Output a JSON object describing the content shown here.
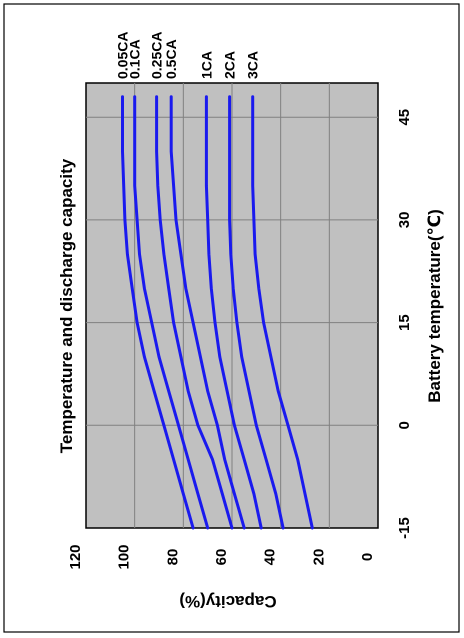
{
  "chart_data": {
    "type": "line",
    "title": "Temperature and discharge capacity",
    "xlabel": "Battery temperature(℃)",
    "ylabel": "Capacity(%)",
    "xlim": [
      -15,
      50
    ],
    "ylim": [
      0,
      120
    ],
    "x_ticks": [
      "-15",
      "0",
      "15",
      "30",
      "45"
    ],
    "y_ticks": [
      "120",
      "100",
      "80",
      "60",
      "40",
      "20",
      "0"
    ],
    "grid": true,
    "orientation": "rotated-90-ccw",
    "series": [
      {
        "name": "0.05CA",
        "x": [
          -15,
          -10,
          -5,
          0,
          5,
          10,
          15,
          20,
          25,
          30,
          35,
          40,
          45,
          48
        ],
        "y": [
          76,
          80,
          84,
          88,
          92,
          96,
          99,
          101,
          103,
          104,
          104.5,
          105,
          105,
          105
        ]
      },
      {
        "name": "0.1CA",
        "x": [
          -15,
          -10,
          -5,
          0,
          5,
          10,
          15,
          20,
          25,
          30,
          35,
          40,
          45,
          48
        ],
        "y": [
          70,
          74,
          78,
          82,
          86,
          90,
          93,
          96,
          98,
          99,
          100,
          100,
          100,
          100
        ]
      },
      {
        "name": "0.25CA",
        "x": [
          -15,
          -10,
          -5,
          0,
          5,
          10,
          15,
          20,
          25,
          30,
          35,
          40,
          45,
          48
        ],
        "y": [
          60,
          64,
          68,
          74,
          78,
          81,
          84,
          86,
          88,
          89.5,
          90.5,
          91,
          91,
          91
        ]
      },
      {
        "name": "0.5CA",
        "x": [
          -15,
          -10,
          -5,
          0,
          5,
          10,
          15,
          20,
          25,
          30,
          35,
          40,
          45,
          48
        ],
        "y": [
          55,
          59,
          63,
          66,
          70,
          73,
          76,
          79,
          81,
          83,
          84,
          85,
          85,
          85
        ]
      },
      {
        "name": "1CA",
        "x": [
          -15,
          -10,
          -5,
          0,
          5,
          10,
          15,
          20,
          25,
          30,
          35,
          40,
          45,
          48
        ],
        "y": [
          48,
          51,
          55,
          59,
          62,
          65,
          67,
          68.5,
          69.5,
          70,
          70.5,
          70.5,
          70.5,
          70.5
        ]
      },
      {
        "name": "2CA",
        "x": [
          -15,
          -10,
          -5,
          0,
          5,
          10,
          15,
          20,
          25,
          30,
          35,
          40,
          45,
          48
        ],
        "y": [
          39,
          42,
          46,
          50,
          53,
          56,
          58,
          59.5,
          60.5,
          61,
          61,
          61,
          61,
          61
        ]
      },
      {
        "name": "3CA",
        "x": [
          -15,
          -10,
          -5,
          0,
          5,
          10,
          15,
          20,
          25,
          30,
          35,
          40,
          45,
          48
        ],
        "y": [
          27,
          30,
          33,
          37,
          41,
          44,
          47,
          49,
          50.5,
          51,
          51.5,
          51.5,
          51.5,
          51.5
        ]
      }
    ],
    "colors": {
      "line": "#1a1aee",
      "plot_bg": "#c0c0c0",
      "grid": "#808080"
    }
  }
}
